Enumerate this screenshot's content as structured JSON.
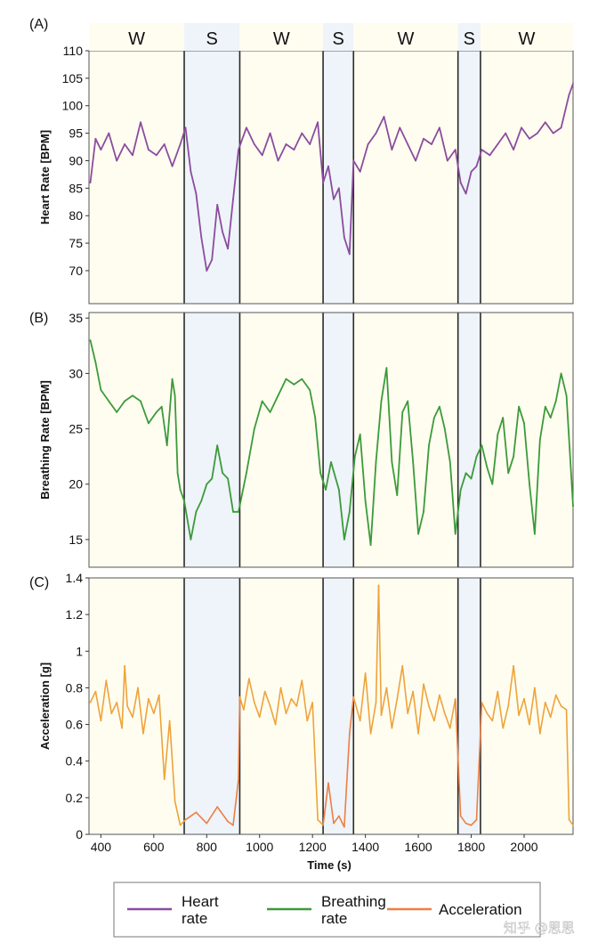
{
  "colors": {
    "wake_bg": "#fffdf0",
    "sleep_bg": "#eef4f9",
    "heart": "#8b4c9e",
    "breathing": "#3c9a3a",
    "accel_wake": "#eea33a",
    "accel_sleep": "#ec7f45",
    "frame": "#2a2a2a"
  },
  "chart_data": [
    {
      "type": "line",
      "panel": "(A)",
      "ylabel": "Heart Rate [BPM]",
      "xlim": [
        355,
        2185
      ],
      "ylim": [
        64,
        110
      ],
      "yticks": [
        "110",
        "105",
        "100",
        "95",
        "90",
        "85",
        "80",
        "75",
        "70"
      ],
      "ytick_values": [
        110,
        105,
        100,
        95,
        90,
        85,
        80,
        75,
        70
      ],
      "state_labels": [
        "W",
        "S",
        "W",
        "S",
        "W",
        "S",
        "W"
      ],
      "series": [
        {
          "name": "Heart rate",
          "x": [
            360,
            380,
            400,
            430,
            460,
            490,
            520,
            550,
            580,
            610,
            640,
            670,
            700,
            720,
            740,
            760,
            780,
            800,
            820,
            840,
            860,
            880,
            900,
            920,
            950,
            980,
            1010,
            1040,
            1070,
            1100,
            1130,
            1160,
            1190,
            1220,
            1240,
            1260,
            1280,
            1300,
            1320,
            1340,
            1355,
            1380,
            1410,
            1440,
            1470,
            1500,
            1530,
            1560,
            1590,
            1620,
            1650,
            1680,
            1710,
            1740,
            1760,
            1780,
            1800,
            1820,
            1840,
            1870,
            1900,
            1930,
            1960,
            1990,
            2020,
            2050,
            2080,
            2110,
            2140,
            2170,
            2185
          ],
          "values": [
            86,
            94,
            92,
            95,
            90,
            93,
            91,
            97,
            92,
            91,
            93,
            89,
            93,
            96,
            88,
            84,
            76,
            70,
            72,
            82,
            77,
            74,
            83,
            92,
            96,
            93,
            91,
            95,
            90,
            93,
            92,
            95,
            93,
            97,
            86,
            89,
            83,
            85,
            76,
            73,
            90,
            88,
            93,
            95,
            98,
            92,
            96,
            93,
            90,
            94,
            93,
            96,
            90,
            92,
            86,
            84,
            88,
            89,
            92,
            91,
            93,
            95,
            92,
            96,
            94,
            95,
            97,
            95,
            96,
            102,
            104
          ]
        }
      ]
    },
    {
      "type": "line",
      "panel": "(B)",
      "ylabel": "Breathing Rate [BPM]",
      "xlim": [
        355,
        2185
      ],
      "ylim": [
        12.5,
        35.5
      ],
      "yticks": [
        "35",
        "30",
        "25",
        "20",
        "15"
      ],
      "ytick_values": [
        35,
        30,
        25,
        20,
        15
      ],
      "series": [
        {
          "name": "Breathing rate",
          "x": [
            360,
            380,
            400,
            430,
            460,
            490,
            520,
            550,
            580,
            610,
            630,
            650,
            670,
            680,
            690,
            700,
            715,
            740,
            760,
            780,
            800,
            820,
            840,
            860,
            880,
            900,
            920,
            950,
            980,
            1010,
            1040,
            1070,
            1100,
            1130,
            1160,
            1190,
            1210,
            1230,
            1250,
            1270,
            1300,
            1320,
            1340,
            1360,
            1380,
            1400,
            1420,
            1440,
            1460,
            1480,
            1500,
            1520,
            1540,
            1560,
            1580,
            1600,
            1620,
            1640,
            1660,
            1680,
            1700,
            1720,
            1740,
            1760,
            1780,
            1800,
            1820,
            1840,
            1860,
            1880,
            1900,
            1920,
            1940,
            1960,
            1980,
            2000,
            2020,
            2040,
            2060,
            2080,
            2100,
            2120,
            2140,
            2160,
            2185
          ],
          "values": [
            33,
            31,
            28.5,
            27.5,
            26.5,
            27.5,
            28,
            27.5,
            25.5,
            26.5,
            27,
            23.5,
            29.5,
            28,
            21,
            19.5,
            18.5,
            15,
            17.5,
            18.5,
            20,
            20.5,
            23.5,
            21,
            20.5,
            17.5,
            17.5,
            21,
            25,
            27.5,
            26.5,
            28,
            29.5,
            29,
            29.5,
            28.5,
            26,
            21,
            19.5,
            22,
            19.5,
            15,
            17.5,
            22.5,
            24.5,
            18.5,
            14.5,
            22,
            27.5,
            30.5,
            22,
            19,
            26.5,
            27.5,
            22,
            15.5,
            17.5,
            23.5,
            26,
            27,
            25,
            22,
            15.5,
            19.5,
            21,
            20.5,
            22.5,
            23.5,
            21.5,
            20,
            24.5,
            26,
            21,
            22.5,
            27,
            25.5,
            20,
            15.5,
            24,
            27,
            26,
            27.5,
            30,
            28,
            18
          ]
        }
      ]
    },
    {
      "type": "line",
      "panel": "(C)",
      "ylabel": "Acceleration [g]",
      "xlabel": "Time (s)",
      "xlim": [
        355,
        2185
      ],
      "ylim": [
        0,
        1.4
      ],
      "yticks": [
        "1.4",
        "1.2",
        "1",
        "0.8",
        "0.6",
        "0.4",
        "0.2",
        "0"
      ],
      "ytick_values": [
        1.4,
        1.2,
        1,
        0.8,
        0.6,
        0.4,
        0.2,
        0
      ],
      "xticks": [
        "400",
        "600",
        "800",
        "1000",
        "1200",
        "1400",
        "1600",
        "1800",
        "2000"
      ],
      "xtick_values": [
        400,
        600,
        800,
        1000,
        1200,
        1400,
        1600,
        1800,
        2000
      ],
      "series": [
        {
          "name": "Acceleration",
          "x": [
            360,
            380,
            400,
            420,
            440,
            460,
            480,
            490,
            500,
            520,
            540,
            560,
            580,
            600,
            620,
            640,
            660,
            680,
            700,
            720,
            760,
            800,
            840,
            880,
            900,
            920,
            925,
            940,
            960,
            980,
            1000,
            1020,
            1040,
            1060,
            1080,
            1100,
            1120,
            1140,
            1160,
            1180,
            1200,
            1220,
            1240,
            1260,
            1280,
            1300,
            1320,
            1340,
            1355,
            1380,
            1400,
            1420,
            1440,
            1450,
            1460,
            1480,
            1500,
            1520,
            1540,
            1560,
            1580,
            1600,
            1620,
            1640,
            1660,
            1680,
            1700,
            1720,
            1740,
            1760,
            1780,
            1800,
            1820,
            1840,
            1860,
            1880,
            1900,
            1920,
            1940,
            1960,
            1980,
            2000,
            2020,
            2040,
            2060,
            2080,
            2100,
            2120,
            2140,
            2160,
            2170,
            2185
          ],
          "values": [
            0.72,
            0.78,
            0.62,
            0.84,
            0.66,
            0.72,
            0.58,
            0.92,
            0.7,
            0.64,
            0.8,
            0.55,
            0.74,
            0.66,
            0.76,
            0.3,
            0.62,
            0.18,
            0.05,
            0.08,
            0.12,
            0.06,
            0.15,
            0.07,
            0.05,
            0.3,
            0.75,
            0.68,
            0.85,
            0.72,
            0.64,
            0.78,
            0.7,
            0.6,
            0.8,
            0.66,
            0.74,
            0.7,
            0.84,
            0.62,
            0.72,
            0.08,
            0.05,
            0.28,
            0.06,
            0.1,
            0.04,
            0.55,
            0.75,
            0.62,
            0.88,
            0.55,
            0.72,
            1.36,
            0.65,
            0.8,
            0.58,
            0.74,
            0.92,
            0.66,
            0.78,
            0.55,
            0.82,
            0.7,
            0.62,
            0.76,
            0.66,
            0.58,
            0.74,
            0.1,
            0.06,
            0.05,
            0.08,
            0.72,
            0.66,
            0.62,
            0.78,
            0.58,
            0.7,
            0.92,
            0.65,
            0.74,
            0.6,
            0.8,
            0.55,
            0.72,
            0.64,
            0.76,
            0.7,
            0.68,
            0.08,
            0.05
          ]
        }
      ]
    }
  ],
  "shared_x": {
    "state_segments": [
      {
        "state": "W",
        "start": 355,
        "end": 715
      },
      {
        "state": "S",
        "start": 715,
        "end": 925
      },
      {
        "state": "W",
        "start": 925,
        "end": 1240
      },
      {
        "state": "S",
        "start": 1240,
        "end": 1355
      },
      {
        "state": "W",
        "start": 1355,
        "end": 1750
      },
      {
        "state": "S",
        "start": 1750,
        "end": 1835
      },
      {
        "state": "W",
        "start": 1835,
        "end": 2185
      }
    ]
  },
  "legend": {
    "items": [
      {
        "label_line1": "Heart",
        "label_line2": "rate",
        "color_key": "heart"
      },
      {
        "label_line1": "Breathing",
        "label_line2": "rate",
        "color_key": "breathing"
      },
      {
        "label_line1": "Acceleration",
        "label_line2": "",
        "color_key": "accel_sleep"
      }
    ]
  },
  "watermark": "知乎 @思思"
}
